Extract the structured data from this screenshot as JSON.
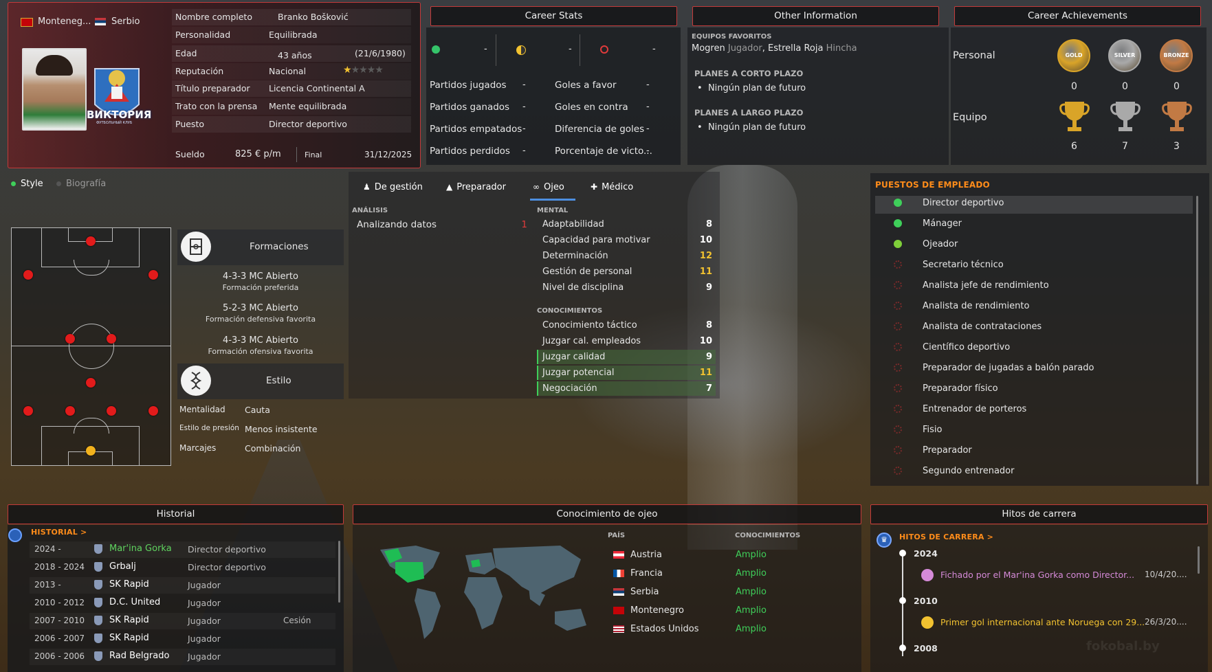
{
  "profile": {
    "nation1": "Monteneg...",
    "nation2": "Serbio",
    "club_badge_text": "ВИКТОРИЯ",
    "club_badge_sub": "ФУТБОЛЬНЫЙ КЛУБ",
    "fields": [
      {
        "label": "Nombre completo",
        "value": "Branko Bošković"
      },
      {
        "label": "Personalidad",
        "value": "Equilibrada"
      },
      {
        "label": "Edad",
        "value": "43 años",
        "extra": "(21/6/1980)"
      },
      {
        "label": "Reputación",
        "value": "Nacional",
        "stars": 1
      },
      {
        "label": "Título preparador",
        "value": "Licencia Continental A"
      },
      {
        "label": "Trato con la prensa",
        "value": "Mente equilibrada"
      },
      {
        "label": "Puesto",
        "value": "Director deportivo"
      }
    ],
    "salary_label": "Sueldo",
    "salary": "825 € p/m",
    "contract_label": "Final",
    "contract_end": "31/12/2025"
  },
  "career_stats": {
    "title": "Career Stats",
    "icons": [
      {
        "icon": "green-dot-icon",
        "value": "-"
      },
      {
        "icon": "half-dot-icon",
        "value": "-"
      },
      {
        "icon": "red-ring-icon",
        "value": "-"
      }
    ],
    "left": [
      {
        "label": "Partidos jugados",
        "value": "-"
      },
      {
        "label": "Partidos ganados",
        "value": "-"
      },
      {
        "label": "Partidos empatados",
        "value": "-"
      },
      {
        "label": "Partidos perdidos",
        "value": "-"
      }
    ],
    "right": [
      {
        "label": "Goles a favor",
        "value": "-"
      },
      {
        "label": "Goles en contra",
        "value": "-"
      },
      {
        "label": "Diferencia de goles",
        "value": "-"
      },
      {
        "label": "Porcentaje de victo...",
        "value": "-"
      }
    ]
  },
  "other_info": {
    "title": "Other Information",
    "fav_label": "EQUIPOS FAVORITOS",
    "fav": [
      {
        "team": "Mogren",
        "role": "Jugador",
        "sep": ","
      },
      {
        "team": "Estrella Roja",
        "role": "Hincha",
        "sep": ""
      }
    ],
    "short_label": "PLANES A CORTO PLAZO",
    "short_item": "Ningún plan de futuro",
    "long_label": "PLANES A LARGO PLAZO",
    "long_item": "Ningún plan de futuro"
  },
  "achievements": {
    "title": "Career Achievements",
    "personal_label": "Personal",
    "team_label": "Equipo",
    "medals": [
      {
        "name": "GOLD",
        "count": "0",
        "color": "#d9a428"
      },
      {
        "name": "SILVER",
        "count": "0",
        "color": "#a9a9a9"
      },
      {
        "name": "BRONZE",
        "count": "0",
        "color": "#c27a44"
      }
    ],
    "trophies": [
      {
        "count": "6",
        "color": "#d9a428"
      },
      {
        "count": "7",
        "color": "#a9a9a9"
      },
      {
        "count": "3",
        "color": "#c27a44"
      }
    ]
  },
  "left_tabs": {
    "style": "Style",
    "bio": "Biografía"
  },
  "formations": {
    "title": "Formaciones",
    "items": [
      {
        "name": "4-3-3 MC Abierto",
        "desc": "Formación preferida"
      },
      {
        "name": "5-2-3 MC Abierto",
        "desc": "Formación defensiva favorita"
      },
      {
        "name": "4-3-3 MC Abierto",
        "desc": "Formación ofensiva favorita"
      }
    ]
  },
  "style": {
    "title": "Estilo",
    "rows": [
      {
        "label": "Mentalidad",
        "value": "Cauta"
      },
      {
        "label": "Estilo de presión",
        "value": "Menos insistente"
      },
      {
        "label": "Marcajes",
        "value": "Combinación"
      }
    ]
  },
  "attr_tabs": [
    {
      "label": "De gestión",
      "icon": "person-icon"
    },
    {
      "label": "Preparador",
      "icon": "whistle-icon"
    },
    {
      "label": "Ojeo",
      "icon": "binoculars-icon",
      "active": true
    },
    {
      "label": "Médico",
      "icon": "medkit-icon"
    }
  ],
  "analysis": {
    "label": "ANÁLISIS",
    "name": "Analizando datos",
    "value": "1"
  },
  "mental": {
    "label": "MENTAL",
    "items": [
      {
        "name": "Adaptabilidad",
        "value": "8",
        "color": "#ffffff",
        "hl": false
      },
      {
        "name": "Capacidad para motivar",
        "value": "10",
        "color": "#ffffff",
        "hl": false
      },
      {
        "name": "Determinación",
        "value": "12",
        "color": "#f2c230",
        "hl": false
      },
      {
        "name": "Gestión de personal",
        "value": "11",
        "color": "#f2c230",
        "hl": false
      },
      {
        "name": "Nivel de disciplina",
        "value": "9",
        "color": "#ffffff",
        "hl": false
      }
    ]
  },
  "knowledge": {
    "label": "CONOCIMIENTOS",
    "items": [
      {
        "name": "Conocimiento táctico",
        "value": "8",
        "color": "#ffffff",
        "hl": false
      },
      {
        "name": "Juzgar cal. empleados",
        "value": "10",
        "color": "#ffffff",
        "hl": false
      },
      {
        "name": "Juzgar calidad",
        "value": "9",
        "color": "#ffffff",
        "hl": true
      },
      {
        "name": "Juzgar potencial",
        "value": "11",
        "color": "#f2c230",
        "hl": true
      },
      {
        "name": "Negociación",
        "value": "7",
        "color": "#ffffff",
        "hl": true
      }
    ]
  },
  "positions": {
    "label": "PUESTOS DE EMPLEADO",
    "items": [
      {
        "name": "Director deportivo",
        "level": 3
      },
      {
        "name": "Mánager",
        "level": 3
      },
      {
        "name": "Ojeador",
        "level": 2
      },
      {
        "name": "Secretario técnico",
        "level": 0
      },
      {
        "name": "Analista jefe de rendimiento",
        "level": 0
      },
      {
        "name": "Analista de rendimiento",
        "level": 0
      },
      {
        "name": "Analista de contrataciones",
        "level": 0
      },
      {
        "name": "Científico deportivo",
        "level": 0
      },
      {
        "name": "Preparador de jugadas a balón parado",
        "level": 0
      },
      {
        "name": "Preparador físico",
        "level": 0
      },
      {
        "name": "Entrenador de porteros",
        "level": 0
      },
      {
        "name": "Fisio",
        "level": 0
      },
      {
        "name": "Preparador",
        "level": 0
      },
      {
        "name": "Segundo entrenador",
        "level": 0
      }
    ]
  },
  "historial": {
    "title": "Historial",
    "link": "HISTORIAL >",
    "rows": [
      {
        "years": "2024 -",
        "club": "Mar'ina Gorka",
        "role": "Director deportivo",
        "note": "",
        "club_color": "#5fd35f"
      },
      {
        "years": "2018 - 2024",
        "club": "Grbalj",
        "role": "Director deportivo",
        "note": "",
        "club_color": "#ffffff"
      },
      {
        "years": "2013 -",
        "club": "SK Rapid",
        "role": "Jugador",
        "note": "",
        "club_color": "#ffffff"
      },
      {
        "years": "2010 - 2012",
        "club": "D.C. United",
        "role": "Jugador",
        "note": "",
        "club_color": "#ffffff"
      },
      {
        "years": "2007 - 2010",
        "club": "SK Rapid",
        "role": "Jugador",
        "note": "Cesión",
        "club_color": "#ffffff"
      },
      {
        "years": "2006 - 2007",
        "club": "SK Rapid",
        "role": "Jugador",
        "note": "",
        "club_color": "#ffffff"
      },
      {
        "years": "2006 - 2006",
        "club": "Rad Belgrado",
        "role": "Jugador",
        "note": "",
        "club_color": "#ffffff"
      }
    ]
  },
  "scouting": {
    "title": "Conocimiento de ojeo",
    "country_label": "PAÍS",
    "knowledge_label": "CONOCIMIENTOS",
    "rows": [
      {
        "country": "Austria",
        "level": "Amplio"
      },
      {
        "country": "Francia",
        "level": "Amplio"
      },
      {
        "country": "Serbia",
        "level": "Amplio"
      },
      {
        "country": "Montenegro",
        "level": "Amplio"
      },
      {
        "country": "Estados Unidos",
        "level": "Amplio"
      }
    ]
  },
  "milestones": {
    "title": "Hitos de carrera",
    "link": "HITOS DE CARRERA >",
    "years": [
      "2024",
      "2010",
      "2008"
    ],
    "events": [
      {
        "text": "Fichado por el Mar'ina Gorka como Director...",
        "date": "10/4/20....",
        "color": "#d58ad8"
      },
      {
        "text": "Primer gol internacional ante Noruega con 29...",
        "date": "26/3/20....",
        "color": "#f2c230"
      }
    ]
  },
  "colors": {
    "accent_red": "#c43a3a",
    "orange": "#ff8c1a",
    "green": "#3fcf5a",
    "yellow": "#f2c230"
  }
}
